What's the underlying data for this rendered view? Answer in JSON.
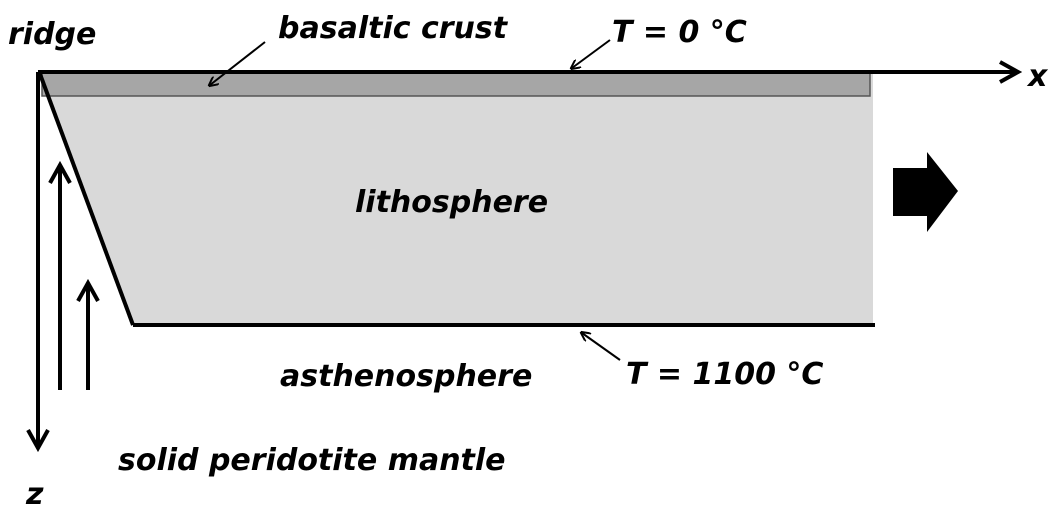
{
  "labels": {
    "ridge": "ridge",
    "crust": "basaltic crust",
    "top_temp": "T = 0 °C",
    "x_axis": "x",
    "lithosphere": "lithosphere",
    "asthenosphere": "asthenosphere",
    "bottom_temp": "T = 1100 °C",
    "mantle": "solid peridotite mantle",
    "z_axis": "z"
  }
}
